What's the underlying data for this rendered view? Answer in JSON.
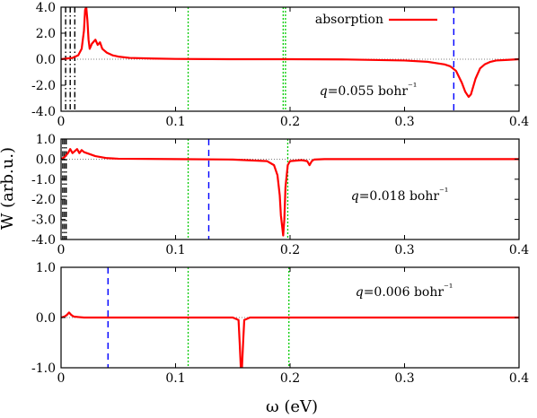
{
  "figure": {
    "ylabel": "W (arb.u.)",
    "xlabel": "ω (eV)"
  },
  "chart_data": [
    {
      "type": "line",
      "panel": "top",
      "xlim": [
        0,
        0.4
      ],
      "ylim": [
        -4.0,
        4.0
      ],
      "xticks": [
        0,
        0.1,
        0.2,
        0.3,
        0.4
      ],
      "xtick_labels": [
        "0",
        "0.1",
        "0.2",
        "0.3",
        "0.4"
      ],
      "yticks": [
        -4.0,
        -2.0,
        0.0,
        2.0,
        4.0
      ],
      "ytick_labels": [
        "-4.0",
        "-2.0",
        "0.0",
        "2.0",
        "4.0"
      ],
      "grid": false,
      "legend": {
        "position": "top-right",
        "entries": [
          "absorption"
        ]
      },
      "annotation": "q=0.055 bohr⁻¹",
      "series": [
        {
          "name": "absorption",
          "color": "#ff0000",
          "x": [
            0.0,
            0.005,
            0.01,
            0.015,
            0.018,
            0.02,
            0.021,
            0.022,
            0.023,
            0.024,
            0.025,
            0.027,
            0.03,
            0.032,
            0.034,
            0.036,
            0.04,
            0.045,
            0.05,
            0.06,
            0.08,
            0.1,
            0.15,
            0.2,
            0.25,
            0.3,
            0.32,
            0.335,
            0.34,
            0.345,
            0.35,
            0.353,
            0.356,
            0.358,
            0.362,
            0.366,
            0.37,
            0.375,
            0.38,
            0.39,
            0.4
          ],
          "y": [
            0.0,
            0.05,
            0.1,
            0.3,
            0.8,
            2.2,
            3.8,
            4.0,
            3.0,
            1.5,
            0.8,
            1.2,
            1.5,
            1.1,
            1.3,
            0.8,
            0.5,
            0.3,
            0.2,
            0.1,
            0.05,
            0.02,
            0.0,
            0.0,
            -0.02,
            -0.1,
            -0.2,
            -0.4,
            -0.55,
            -0.9,
            -1.8,
            -2.5,
            -2.9,
            -2.7,
            -1.5,
            -0.7,
            -0.4,
            -0.2,
            -0.1,
            -0.05,
            0.0
          ]
        }
      ],
      "vlines": [
        {
          "x": 0.004,
          "color": "#000000",
          "style": "dash-dot"
        },
        {
          "x": 0.008,
          "color": "#000000",
          "style": "dash-dot"
        },
        {
          "x": 0.012,
          "color": "#000000",
          "style": "dash-dot"
        },
        {
          "x": 0.111,
          "color": "#00cc00",
          "style": "dotted"
        },
        {
          "x": 0.194,
          "color": "#00cc00",
          "style": "dotted"
        },
        {
          "x": 0.196,
          "color": "#00cc00",
          "style": "dotted"
        },
        {
          "x": 0.343,
          "color": "#0000ff",
          "style": "dashed"
        }
      ]
    },
    {
      "type": "line",
      "panel": "middle",
      "xlim": [
        0,
        0.4
      ],
      "ylim": [
        -4.0,
        1.0
      ],
      "xticks": [
        0,
        0.1,
        0.2,
        0.3,
        0.4
      ],
      "xtick_labels": [
        "0",
        "0.1",
        "0.2",
        "0.3",
        "0.4"
      ],
      "yticks": [
        -4.0,
        -3.0,
        -2.0,
        -1.0,
        0.0,
        1.0
      ],
      "ytick_labels": [
        "-4.0",
        "-3.0",
        "-2.0",
        "-1.0",
        "0.0",
        "1.0"
      ],
      "grid": false,
      "annotation": "q=0.018 bohr⁻¹",
      "series": [
        {
          "name": "absorption",
          "color": "#ff0000",
          "x": [
            0.0,
            0.003,
            0.006,
            0.008,
            0.01,
            0.012,
            0.014,
            0.016,
            0.018,
            0.02,
            0.025,
            0.03,
            0.04,
            0.05,
            0.1,
            0.15,
            0.18,
            0.186,
            0.189,
            0.191,
            0.192,
            0.193,
            0.194,
            0.195,
            0.196,
            0.198,
            0.2,
            0.21,
            0.215,
            0.217,
            0.219,
            0.221,
            0.23,
            0.3,
            0.4
          ],
          "y": [
            0.0,
            0.1,
            0.3,
            0.5,
            0.3,
            0.4,
            0.5,
            0.3,
            0.45,
            0.35,
            0.25,
            0.15,
            0.05,
            0.02,
            0.0,
            -0.02,
            -0.1,
            -0.3,
            -0.8,
            -1.8,
            -2.8,
            -3.3,
            -3.8,
            -3.0,
            -1.4,
            -0.3,
            -0.1,
            -0.05,
            -0.1,
            -0.3,
            -0.1,
            -0.02,
            0.0,
            0.0,
            0.0
          ]
        }
      ],
      "vlines": [
        {
          "x": 0.0015,
          "color": "#000000",
          "style": "dash-dot"
        },
        {
          "x": 0.003,
          "color": "#000000",
          "style": "dash-dot"
        },
        {
          "x": 0.0045,
          "color": "#000000",
          "style": "dash-dot"
        },
        {
          "x": 0.111,
          "color": "#00cc00",
          "style": "dotted"
        },
        {
          "x": 0.129,
          "color": "#0000ff",
          "style": "dashed"
        },
        {
          "x": 0.198,
          "color": "#00cc00",
          "style": "dotted"
        }
      ]
    },
    {
      "type": "line",
      "panel": "bottom",
      "xlim": [
        0,
        0.4
      ],
      "ylim": [
        -1.0,
        1.0
      ],
      "xticks": [
        0,
        0.1,
        0.2,
        0.3,
        0.4
      ],
      "xtick_labels": [
        "0",
        "0.1",
        "0.2",
        "0.3",
        "0.4"
      ],
      "yticks": [
        -1.0,
        0.0,
        1.0
      ],
      "ytick_labels": [
        "-1.0",
        "0.0",
        "1.0"
      ],
      "grid": false,
      "annotation": "q=0.006 bohr⁻¹",
      "series": [
        {
          "name": "absorption",
          "color": "#ff0000",
          "x": [
            0.0,
            0.003,
            0.005,
            0.007,
            0.009,
            0.011,
            0.015,
            0.02,
            0.05,
            0.1,
            0.15,
            0.155,
            0.156,
            0.157,
            0.158,
            0.159,
            0.16,
            0.165,
            0.2,
            0.3,
            0.4
          ],
          "y": [
            0.0,
            0.02,
            0.05,
            0.1,
            0.05,
            0.02,
            0.01,
            0.0,
            0.0,
            0.0,
            0.0,
            -0.05,
            -0.5,
            -1.0,
            -1.0,
            -0.5,
            -0.05,
            0.0,
            0.0,
            0.0,
            0.0
          ]
        }
      ],
      "vlines": [
        {
          "x": 0.041,
          "color": "#0000ff",
          "style": "dashed"
        },
        {
          "x": 0.111,
          "color": "#00cc00",
          "style": "dotted"
        },
        {
          "x": 0.199,
          "color": "#00cc00",
          "style": "dotted"
        }
      ]
    }
  ]
}
